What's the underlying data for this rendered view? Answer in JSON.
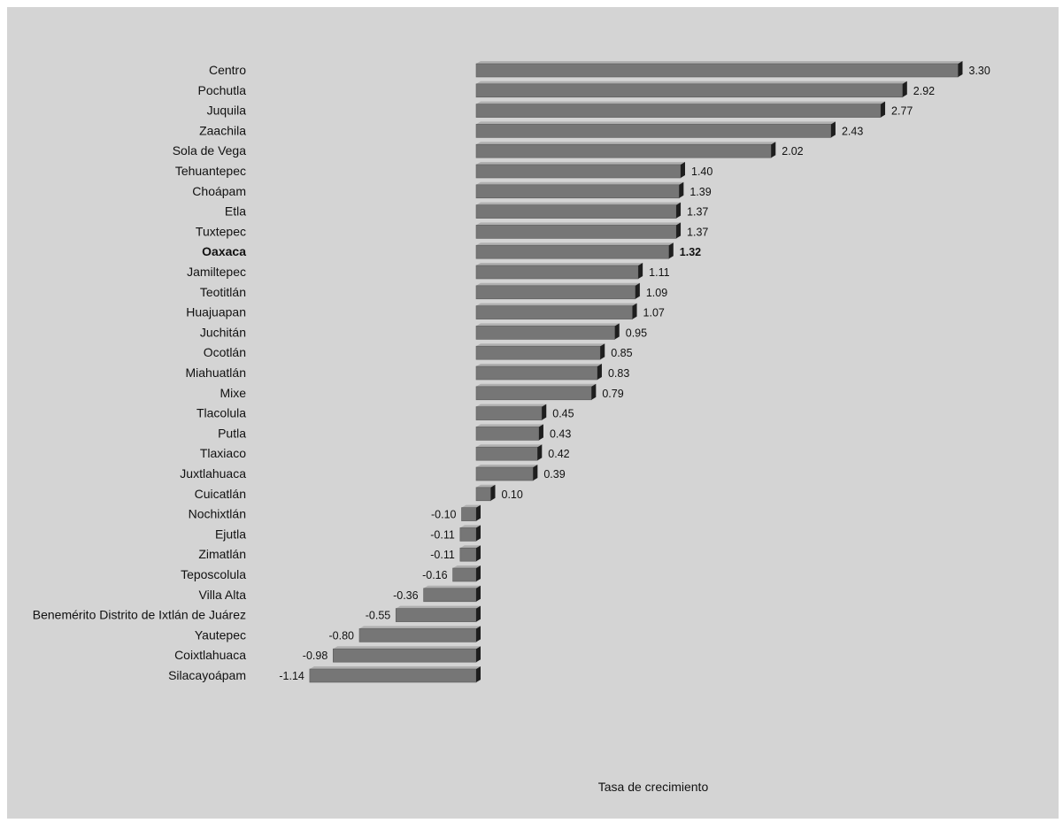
{
  "chart_data": {
    "type": "bar",
    "orientation": "horizontal",
    "title": "",
    "xlabel": "Tasa de crecimiento",
    "ylabel": "",
    "xlim": [
      -1.14,
      3.3
    ],
    "grid": false,
    "legend": "none",
    "highlight_category": "Oaxaca",
    "colors": {
      "bar_front": "#767676",
      "bar_top": "#b0b0b0",
      "bar_side": "#1e1e1e",
      "background": "#d4d4d4"
    },
    "categories": [
      "Centro",
      "Pochutla",
      "Juquila",
      "Zaachila",
      "Sola de Vega",
      "Tehuantepec",
      "Choápam",
      "Etla",
      "Tuxtepec",
      "Oaxaca",
      "Jamiltepec",
      "Teotitlán",
      "Huajuapan",
      "Juchitán",
      "Ocotlán",
      "Miahuatlán",
      "Mixe",
      "Tlacolula",
      "Putla",
      "Tlaxiaco",
      "Juxtlahuaca",
      "Cuicatlán",
      "Nochixtlán",
      "Ejutla",
      "Zimatlán",
      "Teposcolula",
      "Villa Alta",
      "Benemérito Distrito de Ixtlán de Juárez",
      "Yautepec",
      "Coixtlahuaca",
      "Silacayoápam"
    ],
    "values": [
      3.3,
      2.92,
      2.77,
      2.43,
      2.02,
      1.4,
      1.39,
      1.37,
      1.37,
      1.32,
      1.11,
      1.09,
      1.07,
      0.95,
      0.85,
      0.83,
      0.79,
      0.45,
      0.43,
      0.42,
      0.39,
      0.1,
      -0.1,
      -0.11,
      -0.11,
      -0.16,
      -0.36,
      -0.55,
      -0.8,
      -0.98,
      -1.14
    ],
    "value_labels": [
      "3.30",
      "2.92",
      "2.77",
      "2.43",
      "2.02",
      "1.40",
      "1.39",
      "1.37",
      "1.37",
      "1.32",
      "1.11",
      "1.09",
      "1.07",
      "0.95",
      "0.85",
      "0.83",
      "0.79",
      "0.45",
      "0.43",
      "0.42",
      "0.39",
      "0.10",
      "-0.10",
      "-0.11",
      "-0.11",
      "-0.16",
      "-0.36",
      "-0.55",
      "-0.80",
      "-0.98",
      "-1.14"
    ]
  }
}
